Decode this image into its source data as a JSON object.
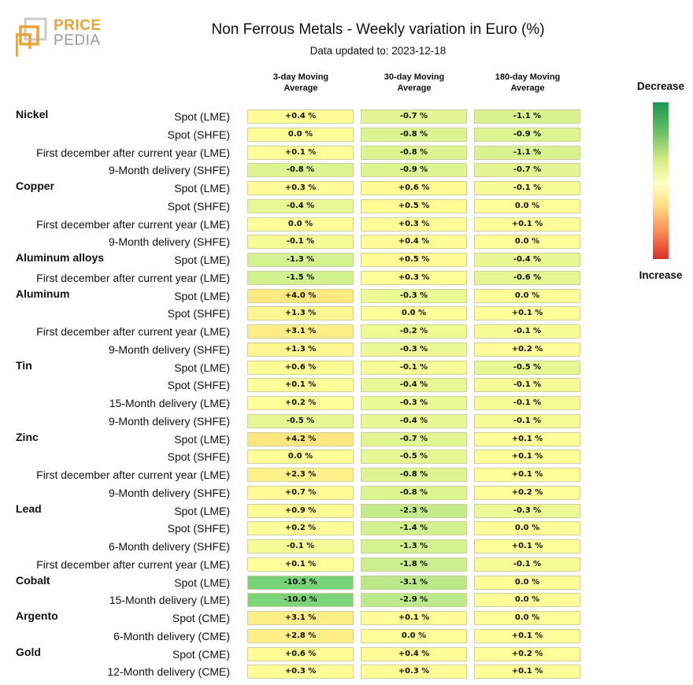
{
  "logo": {
    "line1": "PRICE",
    "line2": "PEDIA"
  },
  "title": "Non Ferrous Metals - Weekly variation in Euro (%)",
  "subtitle": "Data updated to: 2023-12-18",
  "columns": [
    {
      "line1": "3-day Moving",
      "line2": "Average"
    },
    {
      "line1": "30-day Moving",
      "line2": "Average"
    },
    {
      "line1": "180-day Moving",
      "line2": "Average"
    }
  ],
  "legend": {
    "top": "Decrease",
    "bottom": "Increase"
  },
  "chart_data": {
    "type": "table",
    "title": "Non Ferrous Metals - Weekly variation in Euro (%)",
    "columns": [
      "3-day Moving Average",
      "30-day Moving Average",
      "180-day Moving Average"
    ],
    "unit": "%",
    "rows": [
      {
        "group": "Nickel",
        "label": "Spot (LME)",
        "values": [
          0.4,
          -0.7,
          -1.1
        ],
        "texts": [
          "+0.4 %",
          "-0.7 %",
          "-1.1 %"
        ]
      },
      {
        "group": "",
        "label": "Spot (SHFE)",
        "values": [
          0.0,
          -0.8,
          -0.9
        ],
        "texts": [
          "0.0 %",
          "-0.8 %",
          "-0.9 %"
        ]
      },
      {
        "group": "",
        "label": "First december after current year (LME)",
        "values": [
          0.1,
          -0.8,
          -1.1
        ],
        "texts": [
          "+0.1 %",
          "-0.8 %",
          "-1.1 %"
        ]
      },
      {
        "group": "",
        "label": "9-Month delivery (SHFE)",
        "values": [
          -0.8,
          -0.9,
          -0.7
        ],
        "texts": [
          "-0.8 %",
          "-0.9 %",
          "-0.7 %"
        ]
      },
      {
        "group": "Copper",
        "label": "Spot (LME)",
        "values": [
          0.3,
          0.6,
          -0.1
        ],
        "texts": [
          "+0.3 %",
          "+0.6 %",
          "-0.1 %"
        ]
      },
      {
        "group": "",
        "label": "Spot (SHFE)",
        "values": [
          -0.4,
          0.5,
          0.0
        ],
        "texts": [
          "-0.4 %",
          "+0.5 %",
          "0.0 %"
        ]
      },
      {
        "group": "",
        "label": "First december after current year (LME)",
        "values": [
          0.0,
          0.3,
          0.1
        ],
        "texts": [
          "0.0 %",
          "+0.3 %",
          "+0.1 %"
        ]
      },
      {
        "group": "",
        "label": "9-Month delivery (SHFE)",
        "values": [
          -0.1,
          0.4,
          0.0
        ],
        "texts": [
          "-0.1 %",
          "+0.4 %",
          "0.0 %"
        ]
      },
      {
        "group": "Aluminum alloys",
        "label": "Spot (LME)",
        "values": [
          -1.3,
          0.5,
          -0.4
        ],
        "texts": [
          "-1.3 %",
          "+0.5 %",
          "-0.4 %"
        ]
      },
      {
        "group": "",
        "label": "First december after current year (LME)",
        "values": [
          -1.5,
          0.3,
          -0.6
        ],
        "texts": [
          "-1.5 %",
          "+0.3 %",
          "-0.6 %"
        ]
      },
      {
        "group": "Aluminum",
        "label": "Spot (LME)",
        "values": [
          4.0,
          -0.3,
          0.0
        ],
        "texts": [
          "+4.0 %",
          "-0.3 %",
          "0.0 %"
        ]
      },
      {
        "group": "",
        "label": "Spot (SHFE)",
        "values": [
          1.3,
          0.0,
          0.1
        ],
        "texts": [
          "+1.3 %",
          "0.0 %",
          "+0.1 %"
        ]
      },
      {
        "group": "",
        "label": "First december after current year (LME)",
        "values": [
          3.1,
          -0.2,
          -0.1
        ],
        "texts": [
          "+3.1 %",
          "-0.2 %",
          "-0.1 %"
        ]
      },
      {
        "group": "",
        "label": "9-Month delivery (SHFE)",
        "values": [
          1.3,
          -0.3,
          0.2
        ],
        "texts": [
          "+1.3 %",
          "-0.3 %",
          "+0.2 %"
        ]
      },
      {
        "group": "Tin",
        "label": "Spot (LME)",
        "values": [
          0.6,
          -0.1,
          -0.5
        ],
        "texts": [
          "+0.6 %",
          "-0.1 %",
          "-0.5 %"
        ]
      },
      {
        "group": "",
        "label": "Spot (SHFE)",
        "values": [
          0.1,
          -0.4,
          -0.1
        ],
        "texts": [
          "+0.1 %",
          "-0.4 %",
          "-0.1 %"
        ]
      },
      {
        "group": "",
        "label": "15-Month delivery (LME)",
        "values": [
          0.2,
          -0.3,
          -0.1
        ],
        "texts": [
          "+0.2 %",
          "-0.3 %",
          "-0.1 %"
        ]
      },
      {
        "group": "",
        "label": "9-Month delivery (SHFE)",
        "values": [
          -0.5,
          -0.4,
          -0.1
        ],
        "texts": [
          "-0.5 %",
          "-0.4 %",
          "-0.1 %"
        ]
      },
      {
        "group": "Zinc",
        "label": "Spot (LME)",
        "values": [
          4.2,
          -0.7,
          0.1
        ],
        "texts": [
          "+4.2 %",
          "-0.7 %",
          "+0.1 %"
        ]
      },
      {
        "group": "",
        "label": "Spot (SHFE)",
        "values": [
          0.0,
          -0.5,
          0.1
        ],
        "texts": [
          "0.0 %",
          "-0.5 %",
          "+0.1 %"
        ]
      },
      {
        "group": "",
        "label": "First december after current year (LME)",
        "values": [
          2.3,
          -0.8,
          0.1
        ],
        "texts": [
          "+2.3 %",
          "-0.8 %",
          "+0.1 %"
        ]
      },
      {
        "group": "",
        "label": "9-Month delivery (SHFE)",
        "values": [
          0.7,
          -0.8,
          0.2
        ],
        "texts": [
          "+0.7 %",
          "-0.8 %",
          "+0.2 %"
        ]
      },
      {
        "group": "Lead",
        "label": "Spot (LME)",
        "values": [
          0.9,
          -2.3,
          -0.3
        ],
        "texts": [
          "+0.9 %",
          "-2.3 %",
          "-0.3 %"
        ]
      },
      {
        "group": "",
        "label": "Spot (SHFE)",
        "values": [
          0.2,
          -1.4,
          0.0
        ],
        "texts": [
          "+0.2 %",
          "-1.4 %",
          "0.0 %"
        ]
      },
      {
        "group": "",
        "label": "6-Month delivery (SHFE)",
        "values": [
          -0.1,
          -1.3,
          0.1
        ],
        "texts": [
          "-0.1 %",
          "-1.3 %",
          "+0.1 %"
        ]
      },
      {
        "group": "",
        "label": "First december after current year (LME)",
        "values": [
          0.1,
          -1.8,
          -0.1
        ],
        "texts": [
          "+0.1 %",
          "-1.8 %",
          "-0.1 %"
        ]
      },
      {
        "group": "Cobalt",
        "label": "Spot (LME)",
        "values": [
          -10.5,
          -3.1,
          0.0
        ],
        "texts": [
          "-10.5 %",
          "-3.1 %",
          "0.0 %"
        ]
      },
      {
        "group": "",
        "label": "15-Month delivery (LME)",
        "values": [
          -10.0,
          -2.9,
          0.0
        ],
        "texts": [
          "-10.0 %",
          "-2.9 %",
          "0.0 %"
        ]
      },
      {
        "group": "Argento",
        "label": "Spot (CME)",
        "values": [
          3.1,
          0.1,
          0.0
        ],
        "texts": [
          "+3.1 %",
          "+0.1 %",
          "0.0 %"
        ]
      },
      {
        "group": "",
        "label": "6-Month delivery (CME)",
        "values": [
          2.8,
          0.0,
          0.1
        ],
        "texts": [
          "+2.8 %",
          "0.0 %",
          "+0.1 %"
        ]
      },
      {
        "group": "Gold",
        "label": "Spot (CME)",
        "values": [
          0.6,
          0.4,
          0.2
        ],
        "texts": [
          "+0.6 %",
          "+0.4 %",
          "+0.2 %"
        ]
      },
      {
        "group": "",
        "label": "12-Month delivery (CME)",
        "values": [
          0.3,
          0.3,
          0.1
        ],
        "texts": [
          "+0.3 %",
          "+0.3 %",
          "+0.1 %"
        ]
      }
    ]
  }
}
